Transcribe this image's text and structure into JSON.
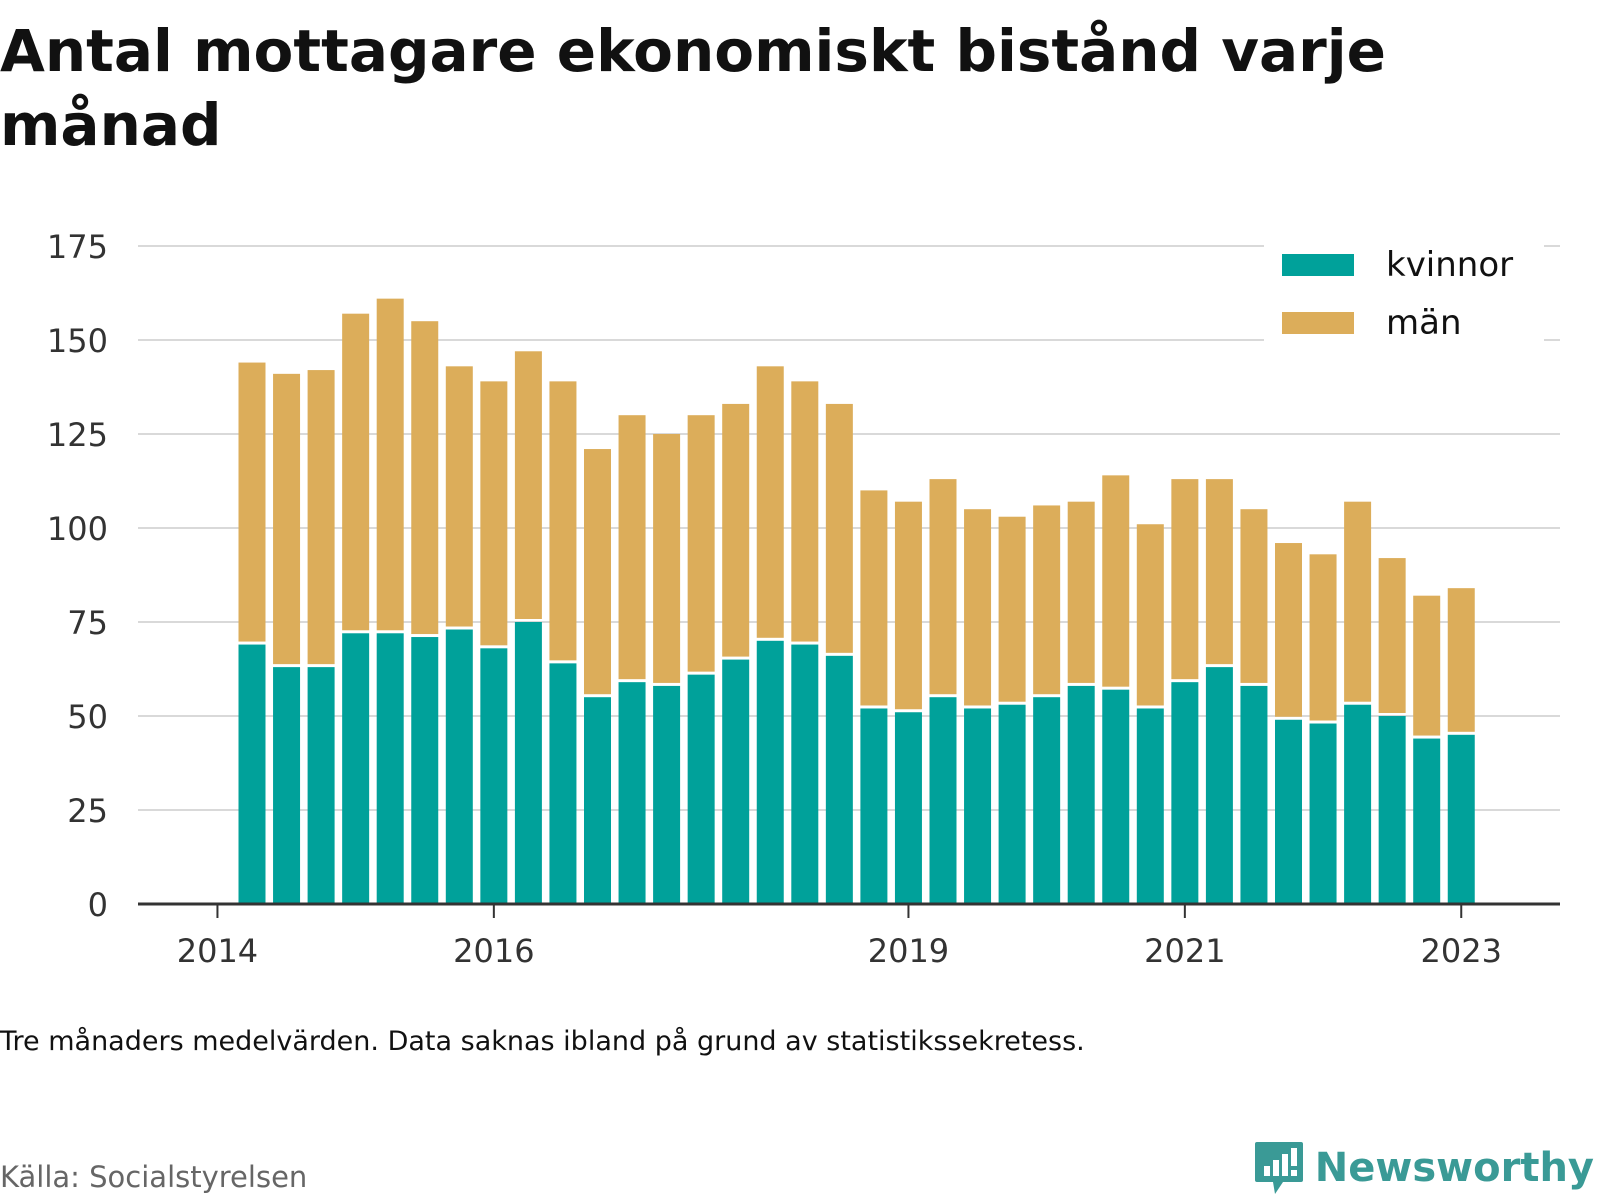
{
  "title": "Antal mottagare ekonomiskt bistånd varje månad",
  "note": "Tre månaders medelvärden. Data saknas ibland på grund av statistikssekretess.",
  "source": "Källa: Socialstyrelsen",
  "brand": {
    "name": "Newsworthy",
    "icon": "newsworthy-logo-icon",
    "color": "#3a9a96"
  },
  "colors": {
    "kvinnor": "#00a19a",
    "man": "#dcad5a",
    "grid": "#d9d9d9",
    "axis": "#333333"
  },
  "chart_data": {
    "type": "bar",
    "stacked": true,
    "y_ticks": [
      0,
      25,
      50,
      75,
      100,
      125,
      150,
      175
    ],
    "ylim": [
      0,
      175
    ],
    "grid": true,
    "legend_position": "top-right",
    "x_labels": [
      {
        "label": "2014",
        "index": -1
      },
      {
        "label": "2016",
        "index": 7
      },
      {
        "label": "2019",
        "index": 19
      },
      {
        "label": "2021",
        "index": 27
      },
      {
        "label": "2023",
        "index": 35
      }
    ],
    "series": [
      {
        "name": "kvinnor",
        "color": "#00a19a",
        "values": [
          69,
          63,
          63,
          72,
          72,
          71,
          73,
          68,
          75,
          64,
          55,
          59,
          58,
          61,
          65,
          70,
          69,
          66,
          52,
          51,
          55,
          52,
          53,
          55,
          58,
          57,
          52,
          59,
          63,
          58,
          49,
          48,
          53,
          50,
          44,
          45
        ]
      },
      {
        "name": "män",
        "color": "#dcad5a",
        "values": [
          75,
          78,
          79,
          85,
          89,
          84,
          70,
          71,
          72,
          75,
          66,
          71,
          67,
          69,
          68,
          73,
          70,
          67,
          58,
          56,
          58,
          53,
          50,
          51,
          49,
          57,
          49,
          54,
          50,
          47,
          47,
          45,
          54,
          42,
          38,
          39
        ]
      }
    ]
  }
}
